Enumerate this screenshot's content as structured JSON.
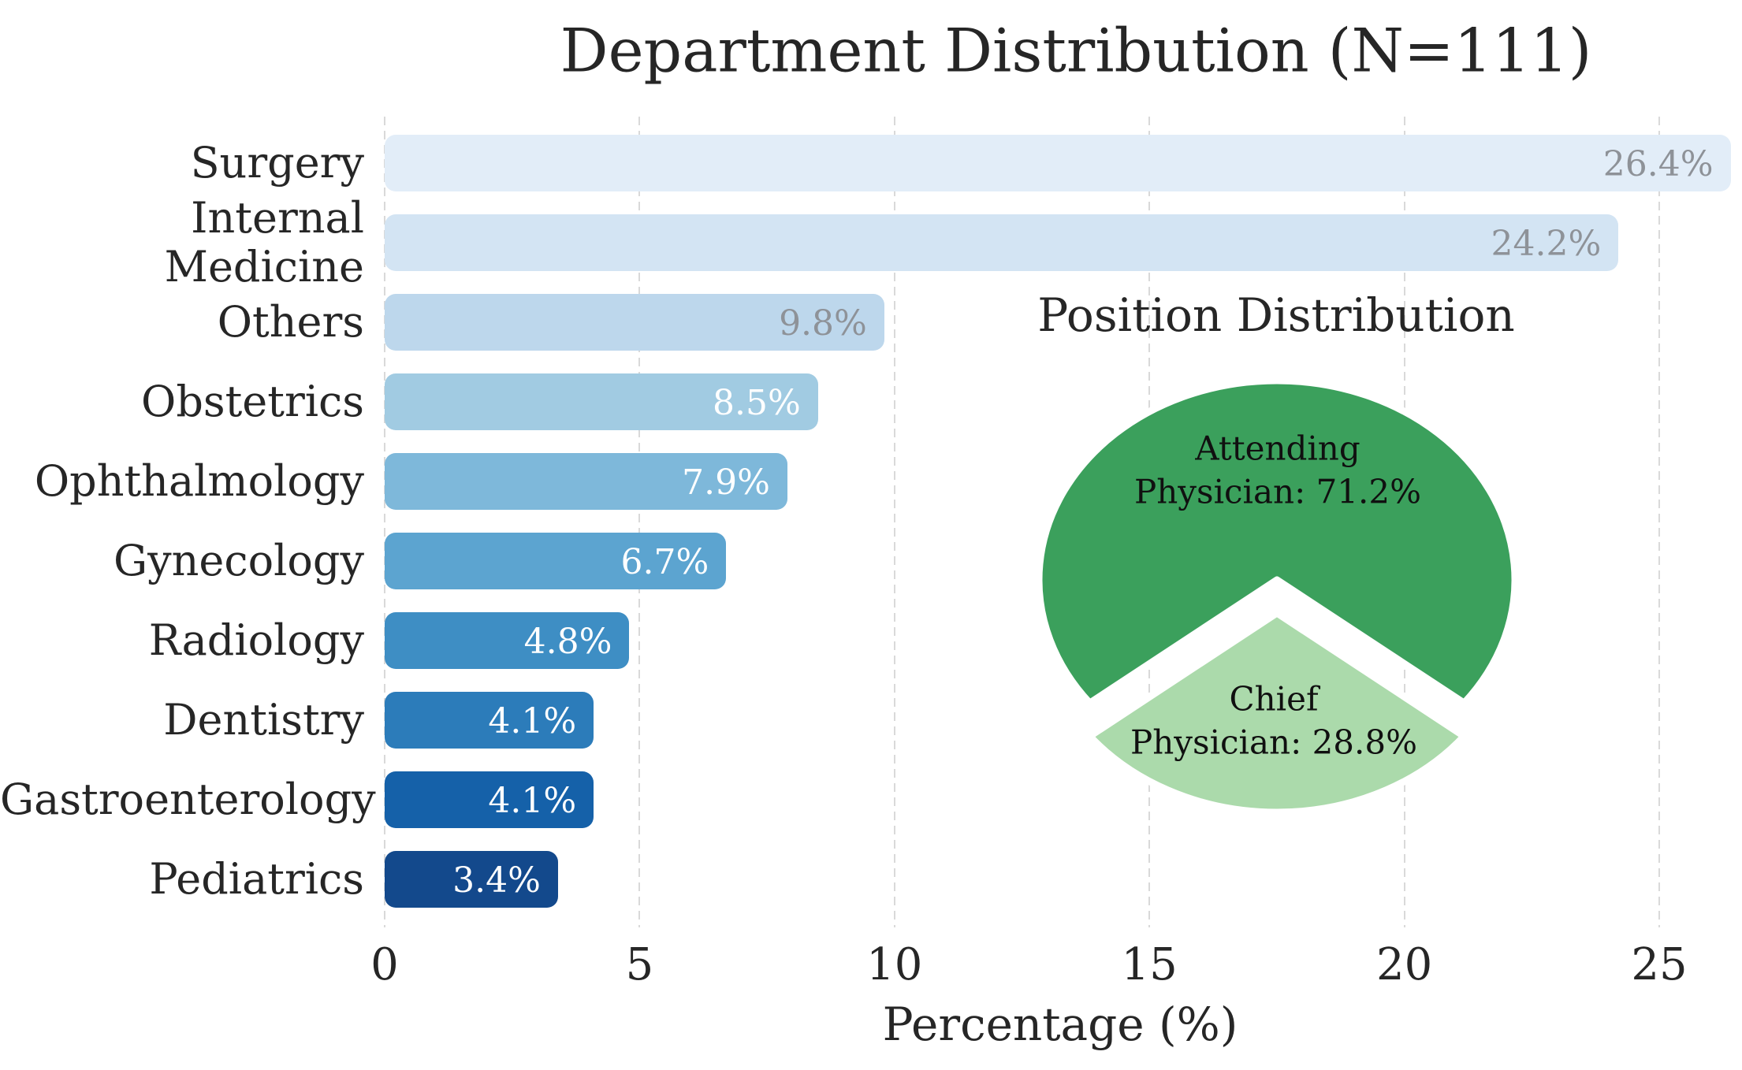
{
  "figure": {
    "background": "#ffffff",
    "grid_color": "#d9d9d9",
    "text_color": "#262626"
  },
  "chart_data": [
    {
      "type": "bar",
      "orientation": "horizontal",
      "title": "Department Distribution (N=111)",
      "xlabel": "Percentage (%)",
      "ylabel": "",
      "categories": [
        "Surgery",
        "Internal\nMedicine",
        "Others",
        "Obstetrics",
        "Ophthalmology",
        "Gynecology",
        "Radiology",
        "Dentistry",
        "Gastroenterology",
        "Pediatrics"
      ],
      "values": [
        26.4,
        24.2,
        9.8,
        8.5,
        7.9,
        6.7,
        4.8,
        4.1,
        4.1,
        3.4
      ],
      "value_labels": [
        "26.4%",
        "24.2%",
        "9.8%",
        "8.5%",
        "7.9%",
        "6.7%",
        "4.8%",
        "4.1%",
        "4.1%",
        "3.4%"
      ],
      "bar_colors": [
        "#e2edf8",
        "#d3e4f3",
        "#bdd7ec",
        "#a1cbe2",
        "#7eb8da",
        "#5ca4d0",
        "#3e8ec4",
        "#2c7cba",
        "#1561a9",
        "#13498c"
      ],
      "value_label_colors": [
        "#8e9298",
        "#8e9298",
        "#8e9298",
        "#ffffff",
        "#ffffff",
        "#ffffff",
        "#ffffff",
        "#ffffff",
        "#ffffff",
        "#ffffff"
      ],
      "x_ticks": [
        0,
        5,
        10,
        15,
        20,
        25
      ],
      "xlim": [
        0,
        26.6
      ],
      "grid": true,
      "grid_style": "dashed-vertical"
    },
    {
      "type": "pie",
      "title": "Position Distribution",
      "slices": [
        {
          "name": "attending-physician",
          "value": 71.2,
          "color": "#3ba05c",
          "label_line1": "Attending",
          "label_line2": "Physician: 71.2%",
          "exploded": false
        },
        {
          "name": "chief-physician",
          "value": 28.8,
          "color": "#abdaab",
          "label_line1": "Chief",
          "label_line2": "Physician: 28.8%",
          "exploded": true
        }
      ],
      "wedge_edge_color": "#ffffff",
      "legend_position": "none"
    }
  ]
}
